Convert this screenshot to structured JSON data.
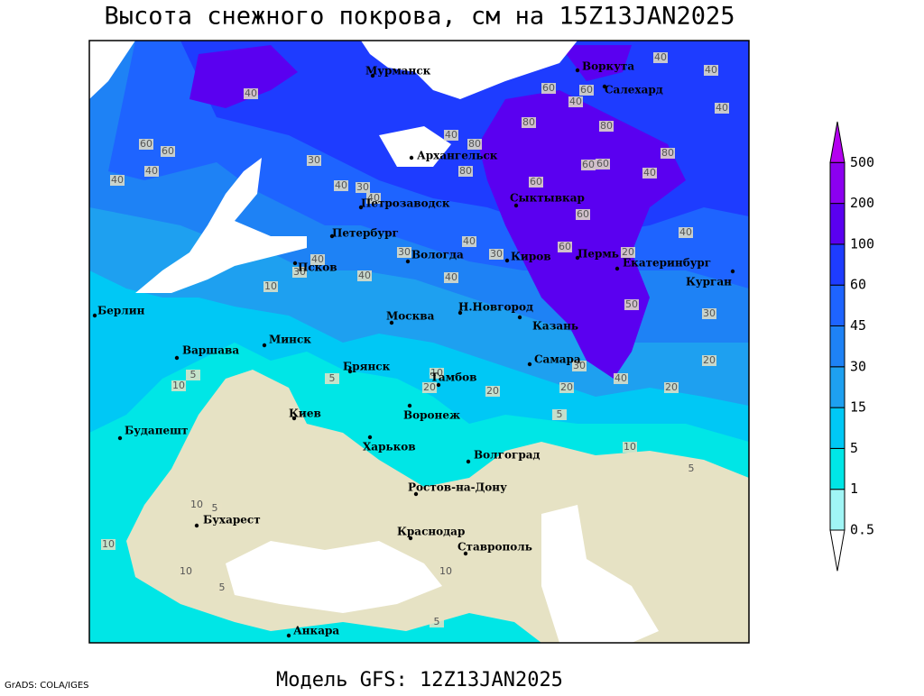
{
  "title": "Высота снежного покрова, см на 15Z13JAN2025",
  "footer": "Модель GFS: 12Z13JAN2025",
  "credit": "GrADS: COLA/IGES",
  "cities": [
    "Мурманск",
    "Воркута",
    "Салехард",
    "Архангельск",
    "Сыктывкар",
    "Петрозаводск",
    "Петербург",
    "Вологда",
    "Киров",
    "Пермь",
    "Екатеринбург",
    "Курган",
    "Псков",
    "Н.Новгород",
    "Казань",
    "Москва",
    "Берлин",
    "Варшава",
    "Минск",
    "Брянск",
    "Тамбов",
    "Самара",
    "Киев",
    "Воронеж",
    "Будапешт",
    "Харьков",
    "Волгоград",
    "Ростов-на-Дону",
    "Бухарест",
    "Краснодар",
    "Ставрополь",
    "Анкара"
  ],
  "contour_labels": [
    40,
    40,
    60,
    40,
    60,
    40,
    30,
    40,
    30,
    40,
    60,
    80,
    80,
    60,
    40,
    60,
    80,
    60,
    40,
    40,
    40,
    40,
    40,
    60,
    30,
    30,
    40,
    60,
    80,
    20,
    30,
    10,
    20,
    20,
    50,
    40,
    30,
    20,
    20,
    20,
    5,
    10,
    5,
    10,
    10,
    5,
    5,
    10,
    10,
    5,
    5,
    10,
    10,
    5,
    60,
    80,
    40,
    40,
    30,
    40
  ],
  "legend": {
    "levels": [
      0.5,
      1,
      5,
      15,
      30,
      45,
      60,
      100,
      200,
      500
    ],
    "colors": [
      "#ffffff",
      "#a0f5f5",
      "#00e6e6",
      "#00c8f5",
      "#1ea0f0",
      "#1e82f5",
      "#1e64ff",
      "#1e3cff",
      "#5a00f0",
      "#8c00f0",
      "#b400f0"
    ]
  }
}
